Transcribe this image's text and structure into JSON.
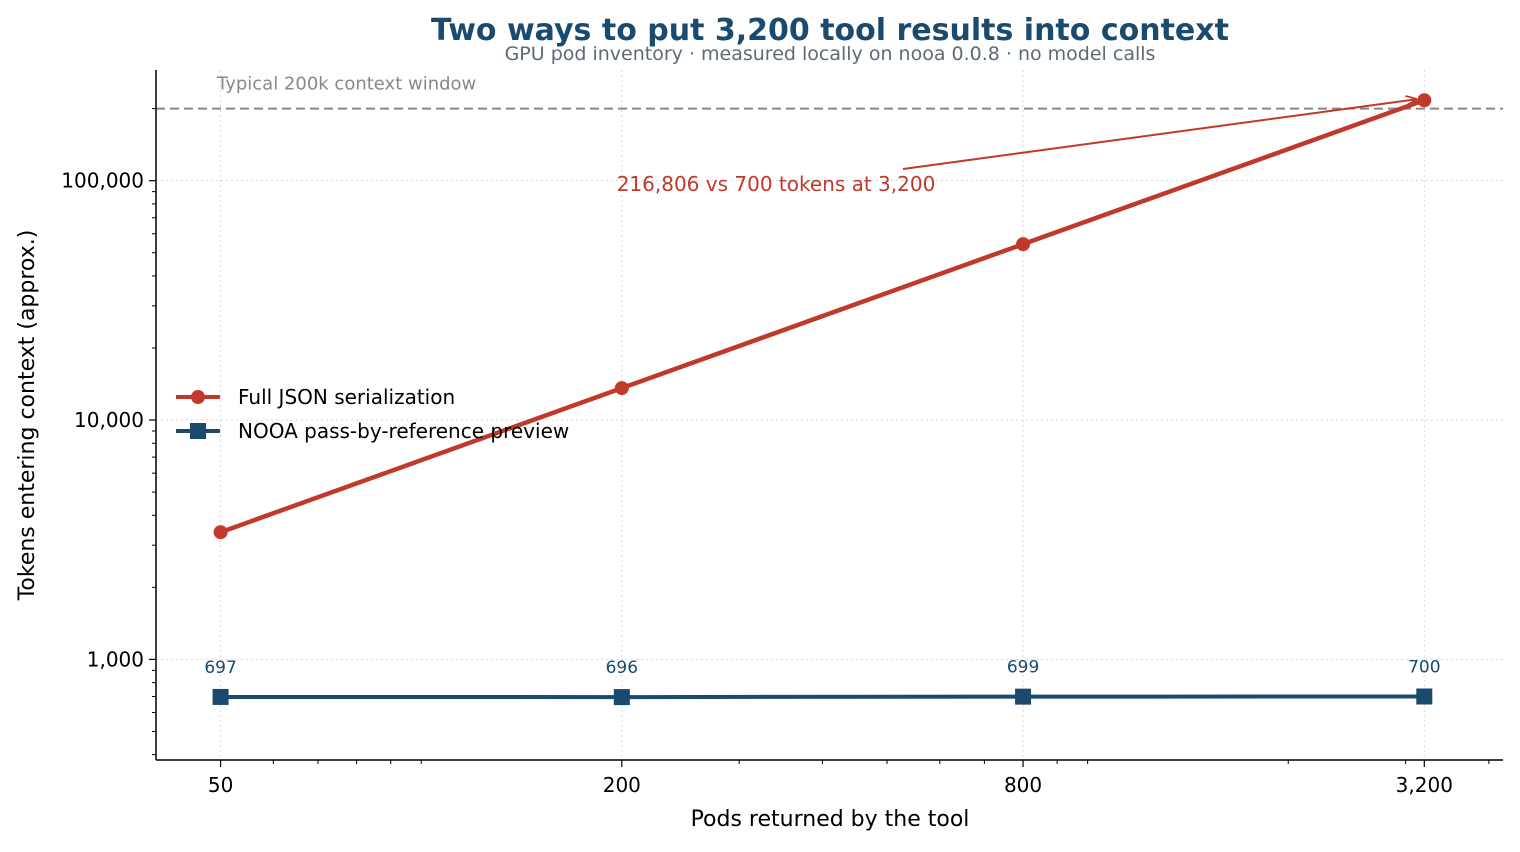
{
  "chart_data": {
    "type": "line",
    "title": "Two ways to put 3,200 tool results into context",
    "subtitle": "GPU pod inventory · measured locally on nooa 0.0.8 · no model calls",
    "xlabel": "Pods returned by the tool",
    "ylabel": "Tokens entering context (approx.)",
    "x_scale": "log",
    "y_scale": "log",
    "x": [
      50,
      200,
      800,
      3200
    ],
    "x_tick_labels": [
      "50",
      "200",
      "800",
      "3,200"
    ],
    "y_ticks": [
      1000,
      10000,
      100000
    ],
    "y_tick_labels": [
      "1,000",
      "10,000",
      "100,000"
    ],
    "xlim": [
      40,
      4200
    ],
    "ylim": [
      380,
      290000
    ],
    "grid": true,
    "legend_position": "center-left",
    "series": [
      {
        "name": "Full JSON serialization",
        "values": [
          3400,
          13600,
          54300,
          216806
        ],
        "color": "#c0392b",
        "marker": "circle"
      },
      {
        "name": "NOOA pass-by-reference preview",
        "values": [
          697,
          696,
          699,
          700
        ],
        "color": "#1a4a6e",
        "marker": "square",
        "point_labels": [
          "697",
          "696",
          "699",
          "700"
        ]
      }
    ],
    "reference_line": {
      "value": 200000,
      "label": "Typical 200k context window",
      "color": "#888888"
    },
    "annotation": {
      "text": "216,806 vs 700 tokens at 3,200",
      "point": [
        3200,
        216806
      ],
      "color": "#c0392b"
    }
  },
  "colors": {
    "title": "#1a4a6e",
    "subtitle": "#5a6b7a",
    "axis": "#000000",
    "grid": "#d9d9d9"
  }
}
